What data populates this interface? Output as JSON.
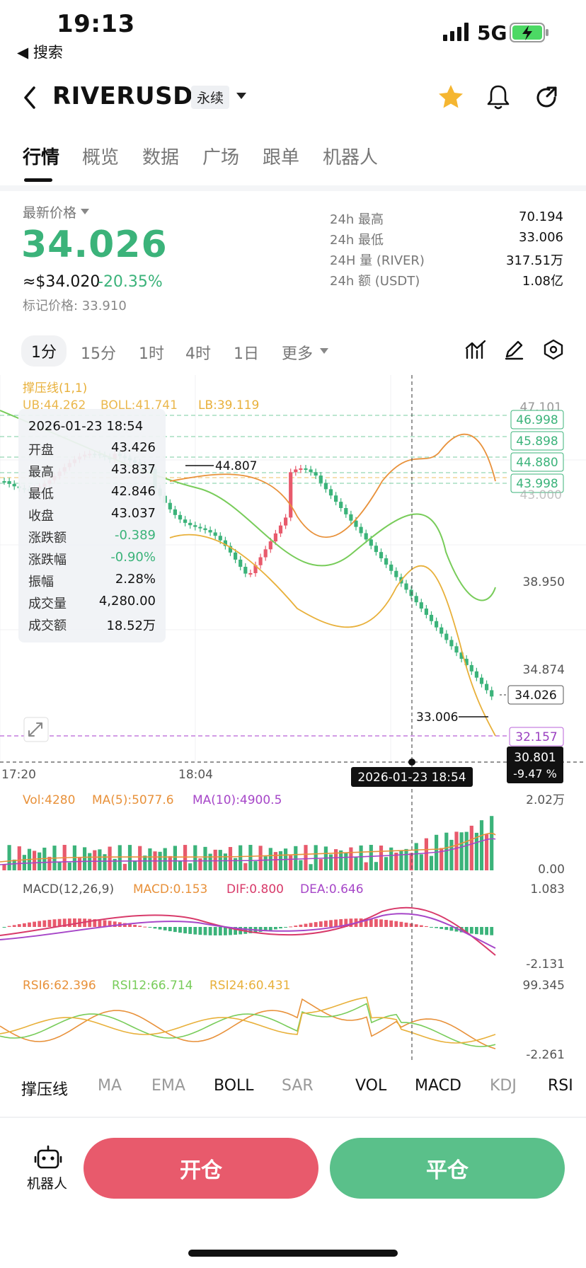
{
  "status_bar": {
    "time": "19:13",
    "back_app": "◀ 搜索",
    "network": "5G"
  },
  "header": {
    "symbol": "RIVERUSDT",
    "contract_type": "永续"
  },
  "tabs": [
    "行情",
    "概览",
    "数据",
    "广场",
    "跟单",
    "机器人"
  ],
  "price": {
    "label": "最新价格",
    "last": "34.026",
    "usd": "≈$34.020",
    "change_pct": "-20.35%",
    "mark": "标记价格: 33.910"
  },
  "stats": [
    {
      "label": "24h  最高",
      "value": "70.194"
    },
    {
      "label": "24h  最低",
      "value": "33.006"
    },
    {
      "label": "24H  量 (RIVER)",
      "value": "317.51万"
    },
    {
      "label": "24h  额 (USDT)",
      "value": "1.08亿"
    }
  ],
  "intervals": [
    "1分",
    "15分",
    "1时",
    "4时",
    "1日",
    "更多"
  ],
  "chart": {
    "overlay_title": "撑压线(1,1)",
    "boll_up": "UB:44.262",
    "boll_mid": "BOLL:41.741",
    "boll_low": "LB:39.119",
    "levels": [
      "47.101",
      "46.998",
      "45.898",
      "44.880",
      "43.998",
      "43.000"
    ],
    "axis_right": [
      "38.950",
      "34.874"
    ],
    "current_price": "34.026",
    "support_level": "32.157",
    "cursor_price": "30.801",
    "cursor_pct": "-9.47 %",
    "high_label": "44.807",
    "low_label": "33.006",
    "time_labels": [
      "17:20",
      "18:04"
    ],
    "cursor_time": "2026-01-23 18:54",
    "vol_text": "Vol:4280",
    "ma5_text": "MA(5):5077.6",
    "ma10_text": "MA(10):4900.5",
    "vol_max": "2.02万",
    "vol_min": "0.00",
    "macd_title": "MACD(12,26,9)",
    "macd_text": "MACD:0.153",
    "dif_text": "DIF:0.800",
    "dea_text": "DEA:0.646",
    "macd_max": "1.083",
    "macd_min": "-2.131",
    "rsi6": "RSI6:62.396",
    "rsi12": "RSI12:66.714",
    "rsi24": "RSI24:60.431",
    "rsi_max": "99.345",
    "rsi_min": "-2.261",
    "colors": {
      "up": "#e85a6c",
      "down": "#3bb37a",
      "ma5": "#e8913a",
      "ma10": "#a646c8",
      "boll_mid": "#78cc5a"
    }
  },
  "tooltip": {
    "time": "2026-01-23 18:54",
    "rows": [
      {
        "label": "开盘",
        "value": "43.426"
      },
      {
        "label": "最高",
        "value": "43.837"
      },
      {
        "label": "最低",
        "value": "42.846"
      },
      {
        "label": "收盘",
        "value": "43.037"
      },
      {
        "label": "涨跌额",
        "value": "-0.389"
      },
      {
        "label": "涨跌幅",
        "value": "-0.90%"
      },
      {
        "label": "振幅",
        "value": "2.28%"
      },
      {
        "label": "成交量",
        "value": "4,280.00"
      },
      {
        "label": "成交额",
        "value": "18.52万"
      }
    ]
  },
  "indicators": [
    "撑压线",
    "MA",
    "EMA",
    "BOLL",
    "SAR",
    "VOL",
    "MACD",
    "KDJ",
    "RSI"
  ],
  "actions": {
    "robot_label": "机器人",
    "open_label": "开仓",
    "close_label": "平仓"
  }
}
